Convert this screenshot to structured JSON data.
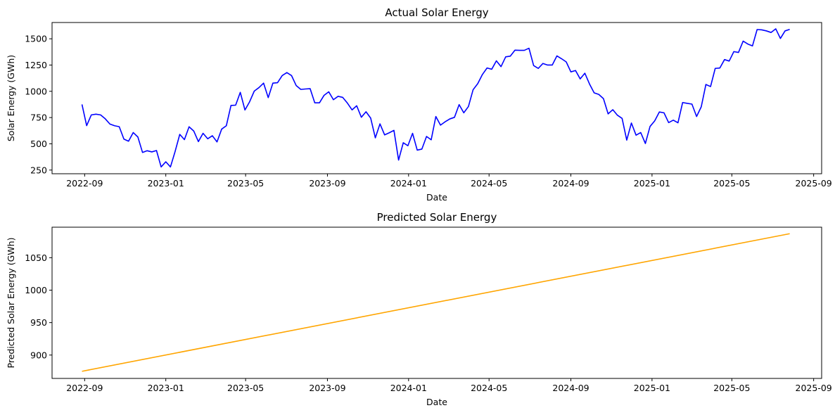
{
  "chart_data": [
    {
      "type": "line",
      "title": "Actual Solar Energy",
      "xlabel": "Date",
      "ylabel": "Solar Energy (GWh)",
      "color": "#0000ff",
      "xlim": [
        "2022-07-14",
        "2025-09-13"
      ],
      "ylim": [
        215,
        1655
      ],
      "grid": false,
      "xticks": [
        "2022-09",
        "2023-01",
        "2023-05",
        "2023-09",
        "2024-01",
        "2024-05",
        "2024-09",
        "2025-01",
        "2025-05",
        "2025-09"
      ],
      "yticks": [
        250,
        500,
        750,
        1000,
        1250,
        1500
      ],
      "series": [
        {
          "x": [
            "2022-08-28",
            "2022-09-04",
            "2022-09-11",
            "2022-09-18",
            "2022-09-25",
            "2022-10-02",
            "2022-10-09",
            "2022-10-16",
            "2022-10-23",
            "2022-10-30",
            "2022-11-06",
            "2022-11-13",
            "2022-11-20",
            "2022-11-27",
            "2022-12-04",
            "2022-12-11",
            "2022-12-18",
            "2022-12-25",
            "2023-01-01",
            "2023-01-08",
            "2023-01-15",
            "2023-01-22",
            "2023-01-29",
            "2023-02-05",
            "2023-02-12",
            "2023-02-19",
            "2023-02-26",
            "2023-03-05",
            "2023-03-12",
            "2023-03-19",
            "2023-03-26",
            "2023-04-02",
            "2023-04-09",
            "2023-04-16",
            "2023-04-23",
            "2023-04-30",
            "2023-05-07",
            "2023-05-14",
            "2023-05-21",
            "2023-05-28",
            "2023-06-04",
            "2023-06-11",
            "2023-06-18",
            "2023-06-25",
            "2023-07-02",
            "2023-07-09",
            "2023-07-16",
            "2023-07-23",
            "2023-07-30",
            "2023-08-06",
            "2023-08-13",
            "2023-08-20",
            "2023-08-27",
            "2023-09-03",
            "2023-09-10",
            "2023-09-17",
            "2023-09-24",
            "2023-10-01",
            "2023-10-08",
            "2023-10-15",
            "2023-10-22",
            "2023-10-29",
            "2023-11-05",
            "2023-11-12",
            "2023-11-19",
            "2023-11-26",
            "2023-12-03",
            "2023-12-10",
            "2023-12-17",
            "2023-12-24",
            "2023-12-31",
            "2024-01-07",
            "2024-01-14",
            "2024-01-21",
            "2024-01-28",
            "2024-02-04",
            "2024-02-11",
            "2024-02-18",
            "2024-02-25",
            "2024-03-03",
            "2024-03-10",
            "2024-03-17",
            "2024-03-24",
            "2024-03-31",
            "2024-04-07",
            "2024-04-14",
            "2024-04-21",
            "2024-04-28",
            "2024-05-05",
            "2024-05-12",
            "2024-05-19",
            "2024-05-26",
            "2024-06-02",
            "2024-06-09",
            "2024-06-16",
            "2024-06-23",
            "2024-06-30",
            "2024-07-07",
            "2024-07-14",
            "2024-07-21",
            "2024-07-28",
            "2024-08-04",
            "2024-08-11",
            "2024-08-18",
            "2024-08-25",
            "2024-09-01",
            "2024-09-08",
            "2024-09-15",
            "2024-09-22",
            "2024-09-29",
            "2024-10-06",
            "2024-10-13",
            "2024-10-20",
            "2024-10-27",
            "2024-11-03",
            "2024-11-10",
            "2024-11-17",
            "2024-11-24",
            "2024-12-01",
            "2024-12-08",
            "2024-12-15",
            "2024-12-22",
            "2024-12-29",
            "2025-01-05",
            "2025-01-12",
            "2025-01-19",
            "2025-01-26",
            "2025-02-02",
            "2025-02-09",
            "2025-02-16",
            "2025-02-23",
            "2025-03-02",
            "2025-03-09",
            "2025-03-16",
            "2025-03-23",
            "2025-03-30",
            "2025-04-06",
            "2025-04-13",
            "2025-04-20",
            "2025-04-27",
            "2025-05-04",
            "2025-05-11",
            "2025-05-18",
            "2025-05-25",
            "2025-06-01",
            "2025-06-08",
            "2025-06-15",
            "2025-06-22",
            "2025-06-29",
            "2025-07-06",
            "2025-07-13",
            "2025-07-20",
            "2025-07-27"
          ],
          "y": [
            875,
            673,
            775,
            782,
            775,
            738,
            688,
            672,
            663,
            545,
            525,
            607,
            565,
            418,
            434,
            423,
            436,
            280,
            329,
            280,
            427,
            590,
            540,
            662,
            622,
            521,
            600,
            548,
            577,
            518,
            640,
            672,
            865,
            868,
            990,
            822,
            900,
            1002,
            1035,
            1078,
            940,
            1078,
            1082,
            1150,
            1178,
            1150,
            1055,
            1018,
            1022,
            1025,
            890,
            890,
            962,
            995,
            920,
            952,
            942,
            888,
            823,
            862,
            753,
            805,
            745,
            557,
            690,
            585,
            605,
            628,
            345,
            510,
            482,
            600,
            440,
            450,
            570,
            538,
            760,
            678,
            710,
            737,
            752,
            873,
            795,
            855,
            1015,
            1073,
            1160,
            1222,
            1210,
            1290,
            1235,
            1328,
            1335,
            1392,
            1390,
            1390,
            1410,
            1245,
            1218,
            1265,
            1250,
            1250,
            1337,
            1310,
            1280,
            1185,
            1198,
            1118,
            1172,
            1070,
            985,
            970,
            930,
            785,
            825,
            772,
            742,
            535,
            698,
            582,
            607,
            503,
            665,
            718,
            803,
            795,
            702,
            725,
            700,
            893,
            885,
            878,
            760,
            852,
            1065,
            1045,
            1218,
            1222,
            1302,
            1288,
            1378,
            1370,
            1478,
            1450,
            1432,
            1588,
            1585,
            1575,
            1560,
            1595,
            1503,
            1575,
            1590
          ]
        }
      ]
    },
    {
      "type": "line",
      "title": "Predicted Solar Energy",
      "xlabel": "Date",
      "ylabel": "Predicted Solar Energy (GWh)",
      "color": "#ffa500",
      "xlim": [
        "2022-07-14",
        "2025-09-13"
      ],
      "ylim": [
        864,
        1097
      ],
      "grid": false,
      "xticks": [
        "2022-09",
        "2023-01",
        "2023-05",
        "2023-09",
        "2024-01",
        "2024-05",
        "2024-09",
        "2025-01",
        "2025-05",
        "2025-09"
      ],
      "yticks": [
        900,
        950,
        1000,
        1050
      ],
      "series": [
        {
          "x": [
            "2022-08-28",
            "2025-07-27"
          ],
          "y": [
            875,
            1087
          ]
        }
      ]
    }
  ]
}
